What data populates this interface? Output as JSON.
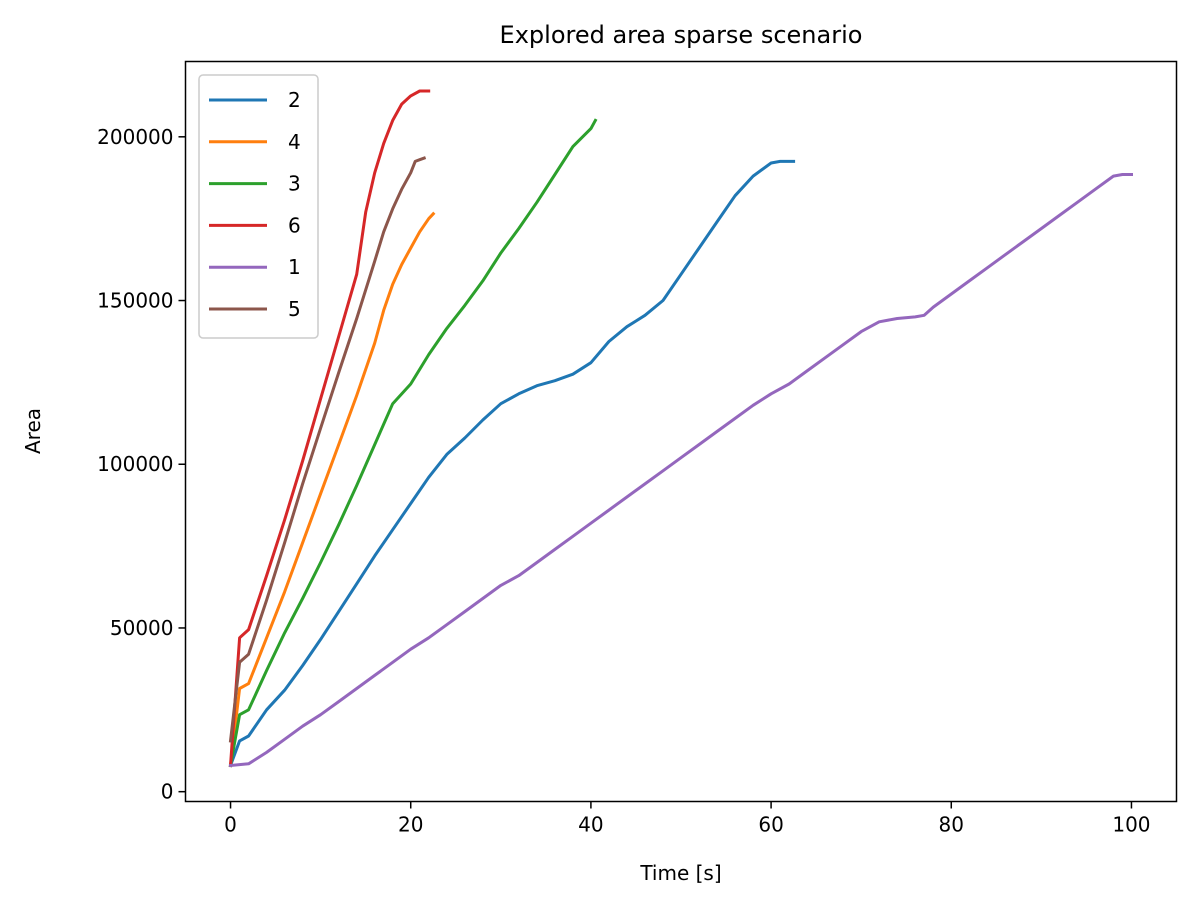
{
  "chart_data": {
    "type": "line",
    "title": "Explored area sparse scenario",
    "xlabel": "Time [s]",
    "ylabel": "Area",
    "xlim": [
      -5,
      105
    ],
    "ylim": [
      -3000,
      223000
    ],
    "xticks": [
      0,
      20,
      40,
      60,
      80,
      100
    ],
    "yticks": [
      0,
      50000,
      100000,
      150000,
      200000
    ],
    "grid": false,
    "legend_position": "top-left",
    "series": [
      {
        "name": "2",
        "color": "#1f77b4",
        "points": [
          [
            0,
            8000
          ],
          [
            1,
            15500
          ],
          [
            2,
            17000
          ],
          [
            4,
            25000
          ],
          [
            6,
            31000
          ],
          [
            8,
            38500
          ],
          [
            10,
            46500
          ],
          [
            12,
            55000
          ],
          [
            14,
            63500
          ],
          [
            16,
            72000
          ],
          [
            18,
            80000
          ],
          [
            20,
            88000
          ],
          [
            22,
            96000
          ],
          [
            24,
            103000
          ],
          [
            26,
            108000
          ],
          [
            28,
            113500
          ],
          [
            30,
            118500
          ],
          [
            32,
            121500
          ],
          [
            34,
            124000
          ],
          [
            36,
            125500
          ],
          [
            38,
            127500
          ],
          [
            40,
            131000
          ],
          [
            42,
            137500
          ],
          [
            44,
            142000
          ],
          [
            46,
            145500
          ],
          [
            48,
            150000
          ],
          [
            50,
            158000
          ],
          [
            52,
            166000
          ],
          [
            54,
            174000
          ],
          [
            56,
            182000
          ],
          [
            58,
            188000
          ],
          [
            60,
            192000
          ],
          [
            61,
            192500
          ],
          [
            62.5,
            192500
          ]
        ]
      },
      {
        "name": "4",
        "color": "#ff7f0e",
        "points": [
          [
            0,
            8000
          ],
          [
            1,
            31500
          ],
          [
            2,
            33000
          ],
          [
            4,
            47000
          ],
          [
            6,
            61000
          ],
          [
            8,
            76000
          ],
          [
            10,
            91000
          ],
          [
            12,
            106000
          ],
          [
            14,
            121000
          ],
          [
            16,
            137000
          ],
          [
            17,
            147000
          ],
          [
            18,
            155000
          ],
          [
            19,
            161000
          ],
          [
            20,
            166000
          ],
          [
            21,
            171000
          ],
          [
            22,
            175000
          ],
          [
            22.5,
            176500
          ]
        ]
      },
      {
        "name": "3",
        "color": "#2ca02c",
        "points": [
          [
            0,
            8000
          ],
          [
            1,
            23500
          ],
          [
            2,
            25000
          ],
          [
            4,
            37000
          ],
          [
            6,
            48500
          ],
          [
            8,
            59000
          ],
          [
            10,
            70000
          ],
          [
            12,
            81500
          ],
          [
            14,
            93500
          ],
          [
            16,
            106000
          ],
          [
            18,
            118500
          ],
          [
            20,
            124500
          ],
          [
            22,
            133500
          ],
          [
            24,
            141500
          ],
          [
            26,
            148500
          ],
          [
            28,
            156000
          ],
          [
            30,
            164500
          ],
          [
            32,
            172000
          ],
          [
            34,
            180000
          ],
          [
            36,
            188500
          ],
          [
            38,
            197000
          ],
          [
            40,
            202500
          ],
          [
            40.5,
            205000
          ]
        ]
      },
      {
        "name": "6",
        "color": "#d62728",
        "points": [
          [
            0,
            8000
          ],
          [
            1,
            47000
          ],
          [
            2,
            49500
          ],
          [
            4,
            66000
          ],
          [
            6,
            83000
          ],
          [
            8,
            101000
          ],
          [
            10,
            120000
          ],
          [
            12,
            139000
          ],
          [
            14,
            158000
          ],
          [
            15,
            177000
          ],
          [
            16,
            189000
          ],
          [
            17,
            198000
          ],
          [
            18,
            205000
          ],
          [
            19,
            210000
          ],
          [
            20,
            212500
          ],
          [
            21,
            214000
          ],
          [
            22,
            214000
          ]
        ]
      },
      {
        "name": "1",
        "color": "#9467bd",
        "points": [
          [
            0,
            8000
          ],
          [
            2,
            8500
          ],
          [
            4,
            12000
          ],
          [
            6,
            16000
          ],
          [
            8,
            20000
          ],
          [
            10,
            23500
          ],
          [
            12,
            27500
          ],
          [
            14,
            31500
          ],
          [
            16,
            35500
          ],
          [
            18,
            39500
          ],
          [
            20,
            43500
          ],
          [
            22,
            47000
          ],
          [
            24,
            51000
          ],
          [
            26,
            55000
          ],
          [
            28,
            59000
          ],
          [
            30,
            63000
          ],
          [
            32,
            66000
          ],
          [
            34,
            70000
          ],
          [
            36,
            74000
          ],
          [
            38,
            78000
          ],
          [
            40,
            82000
          ],
          [
            42,
            86000
          ],
          [
            44,
            90000
          ],
          [
            46,
            94000
          ],
          [
            48,
            98000
          ],
          [
            50,
            102000
          ],
          [
            52,
            106000
          ],
          [
            54,
            110000
          ],
          [
            56,
            114000
          ],
          [
            58,
            118000
          ],
          [
            60,
            121500
          ],
          [
            62,
            124500
          ],
          [
            64,
            128500
          ],
          [
            66,
            132500
          ],
          [
            68,
            136500
          ],
          [
            70,
            140500
          ],
          [
            72,
            143500
          ],
          [
            74,
            144500
          ],
          [
            76,
            145000
          ],
          [
            77,
            145500
          ],
          [
            78,
            148000
          ],
          [
            80,
            152000
          ],
          [
            82,
            156000
          ],
          [
            84,
            160000
          ],
          [
            86,
            164000
          ],
          [
            88,
            168000
          ],
          [
            90,
            172000
          ],
          [
            92,
            176000
          ],
          [
            94,
            180000
          ],
          [
            96,
            184000
          ],
          [
            98,
            188000
          ],
          [
            99,
            188500
          ],
          [
            100,
            188500
          ]
        ]
      },
      {
        "name": "5",
        "color": "#8c564b",
        "points": [
          [
            0,
            15500
          ],
          [
            1,
            39500
          ],
          [
            2,
            42000
          ],
          [
            4,
            58500
          ],
          [
            6,
            76000
          ],
          [
            8,
            94000
          ],
          [
            10,
            111000
          ],
          [
            12,
            128000
          ],
          [
            14,
            144500
          ],
          [
            16,
            162000
          ],
          [
            17,
            171000
          ],
          [
            18,
            178000
          ],
          [
            19,
            184000
          ],
          [
            20,
            189000
          ],
          [
            20.5,
            192500
          ],
          [
            21,
            193000
          ],
          [
            21.5,
            193500
          ]
        ]
      }
    ]
  }
}
